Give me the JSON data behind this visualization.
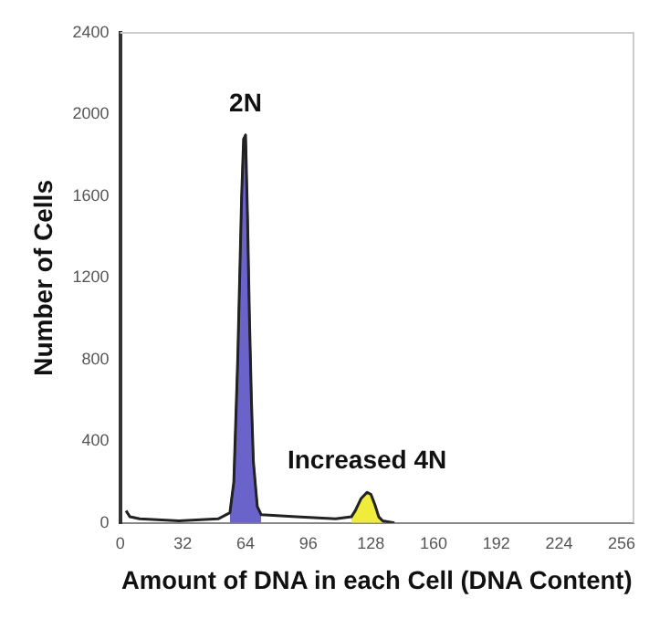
{
  "chart_data": {
    "type": "line",
    "xlabel": "Amount of DNA in each Cell (DNA Content)",
    "ylabel": "Number of Cells",
    "xlim": [
      0,
      262
    ],
    "xticks": [
      0,
      32,
      64,
      96,
      128,
      160,
      192,
      224,
      256
    ],
    "ylim": [
      0,
      2400
    ],
    "yticks": [
      0,
      400,
      800,
      1200,
      1600,
      2000,
      2400
    ],
    "grid": false,
    "legend": false,
    "annotations": [
      {
        "text": "2N",
        "x": 64,
        "y": 1900
      },
      {
        "text": "Increased 4N",
        "x": 126,
        "y": 150
      }
    ],
    "series": [
      {
        "color": "#222222",
        "x": [
          3,
          5,
          10,
          30,
          50,
          56,
          58,
          60,
          62,
          63,
          64,
          65,
          66,
          67,
          68,
          70,
          72,
          90,
          110,
          118,
          120,
          123,
          126,
          128,
          130,
          132,
          134,
          140
        ],
        "values": [
          60,
          30,
          20,
          10,
          20,
          50,
          200,
          800,
          1600,
          1880,
          1900,
          1500,
          1000,
          600,
          300,
          80,
          40,
          30,
          20,
          30,
          60,
          120,
          150,
          140,
          90,
          30,
          10,
          0
        ]
      },
      {
        "type": "area",
        "color": "#6a63c9",
        "x": [
          56,
          58,
          60,
          62,
          63,
          64,
          65,
          66,
          67,
          68,
          70,
          72
        ],
        "values": [
          50,
          200,
          800,
          1600,
          1880,
          1900,
          1500,
          1000,
          600,
          300,
          80,
          40
        ]
      },
      {
        "type": "area",
        "color": "#f0ec3c",
        "x": [
          118,
          120,
          123,
          126,
          128,
          130,
          132,
          134
        ],
        "values": [
          30,
          60,
          120,
          150,
          140,
          90,
          30,
          10
        ]
      }
    ]
  }
}
